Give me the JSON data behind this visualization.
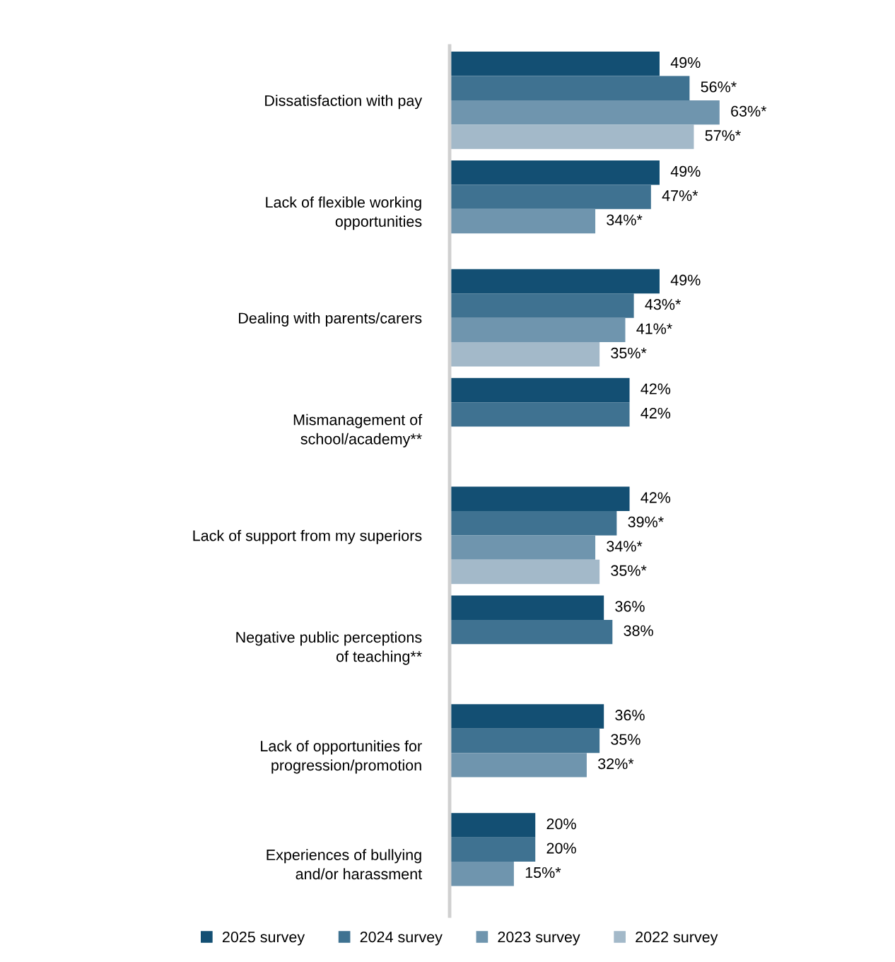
{
  "chart_data": {
    "type": "bar",
    "orientation": "horizontal",
    "legend": "bottom",
    "grid": false,
    "tick_labels": "y",
    "categories": [
      "Dissatisfaction with pay",
      "Lack of flexible working\nopportunities",
      "Dealing with parents/carers",
      "Mismanagement of\nschool/academy**",
      "Lack of support from my superiors",
      "Negative public perceptions\nof teaching**",
      "Lack of opportunities for\nprogression/promotion",
      "Experiences of bullying\nand/or harassment"
    ],
    "series": [
      {
        "name": "2025 survey",
        "color": "#134f73",
        "values": [
          49,
          49,
          49,
          42,
          42,
          36,
          36,
          20
        ],
        "value_labels": [
          "49%",
          "49%",
          "49%",
          "42%",
          "42%",
          "36%",
          "36%",
          "20%"
        ]
      },
      {
        "name": "2024 survey",
        "color": "#3f7291",
        "values": [
          56,
          47,
          43,
          42,
          39,
          38,
          35,
          20
        ],
        "value_labels": [
          "56%*",
          "47%*",
          "43%*",
          "42%",
          "39%*",
          "38%",
          "35%",
          "20%"
        ]
      },
      {
        "name": "2023 survey",
        "color": "#6f95ae",
        "values": [
          63,
          34,
          41,
          null,
          34,
          null,
          32,
          15
        ],
        "value_labels": [
          "63%*",
          "34%*",
          "41%*",
          null,
          "34%*",
          null,
          "32%*",
          "15%*"
        ]
      },
      {
        "name": "2022 survey",
        "color": "#a3b9c9",
        "values": [
          57,
          null,
          35,
          null,
          35,
          null,
          null,
          null
        ],
        "value_labels": [
          "57%*",
          null,
          "35%*",
          null,
          "35%*",
          null,
          null,
          null
        ]
      }
    ]
  }
}
